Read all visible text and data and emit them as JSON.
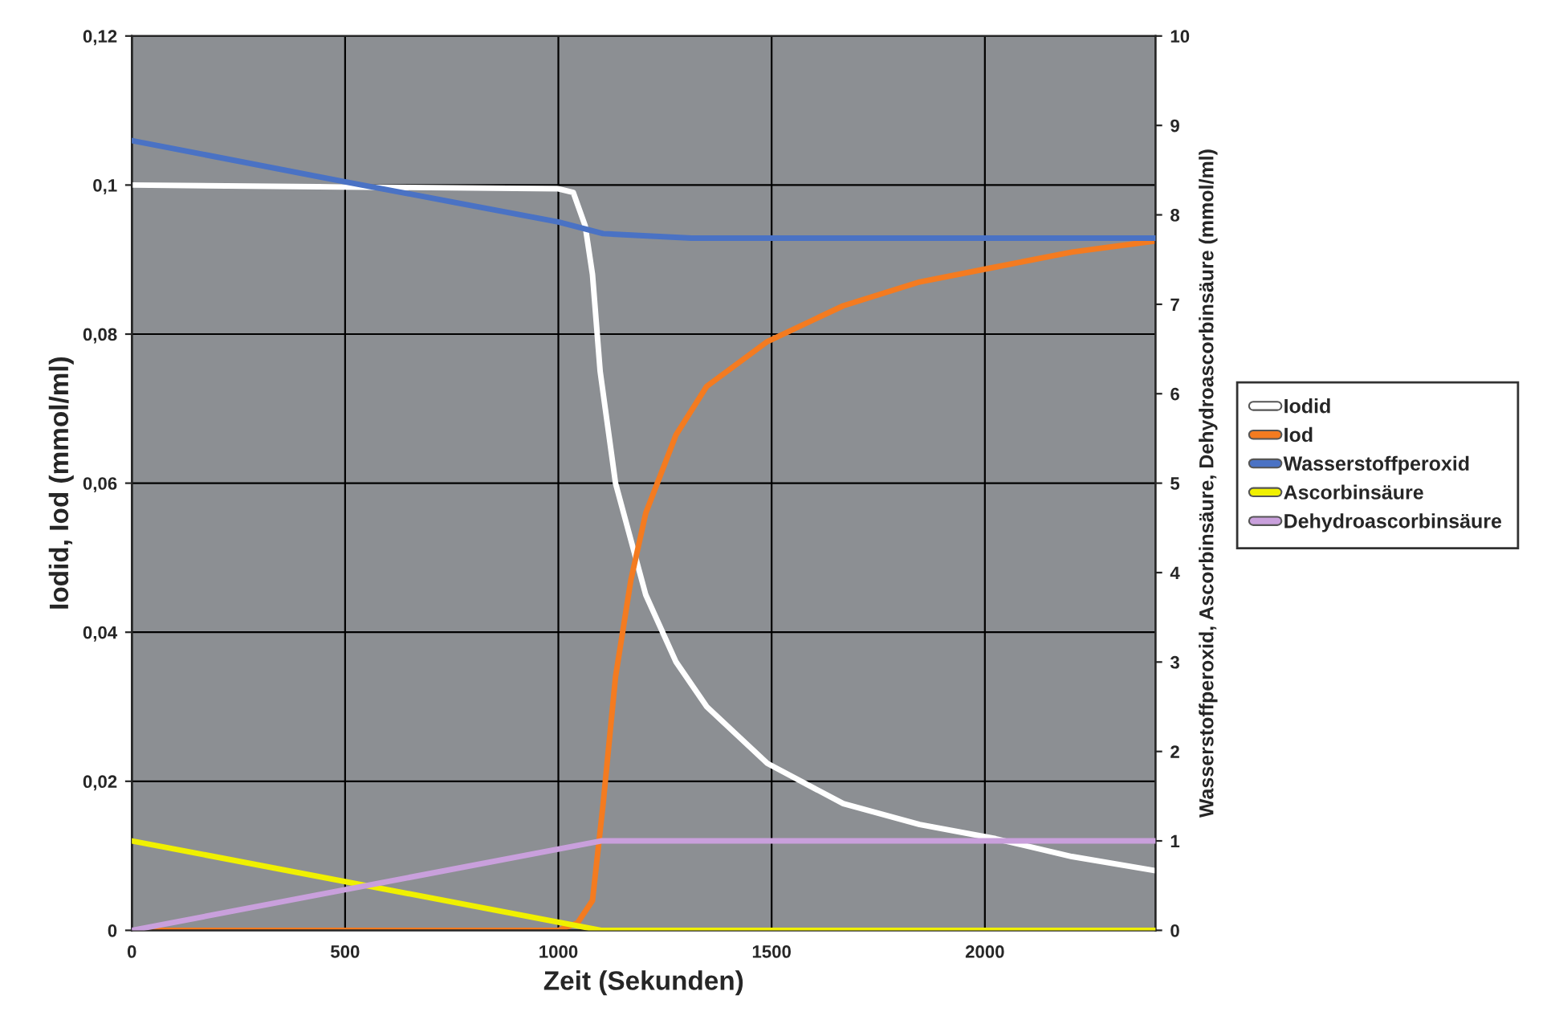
{
  "chart_data": {
    "type": "line",
    "xlabel": "Zeit (Sekunden)",
    "ylabel": "Iodid, Iod (mmol/ml)",
    "y2label": "Wasserstoffperoxid, Ascorbinsäure, Dehydroascorbinsäure (mmol/ml)",
    "xlim": [
      0,
      2400
    ],
    "xticks": [
      0,
      500,
      1000,
      1500,
      2000
    ],
    "ylim": [
      0,
      0.12
    ],
    "yticks": [
      {
        "value": 0,
        "label": "0"
      },
      {
        "value": 0.02,
        "label": "0,02"
      },
      {
        "value": 0.04,
        "label": "0,04"
      },
      {
        "value": 0.06,
        "label": "0,06"
      },
      {
        "value": 0.08,
        "label": "0,08"
      },
      {
        "value": 0.1,
        "label": "0,1"
      },
      {
        "value": 0.12,
        "label": "0,12"
      }
    ],
    "y2lim": [
      0,
      10
    ],
    "y2ticks": [
      0,
      1,
      2,
      3,
      4,
      5,
      6,
      7,
      8,
      9,
      10
    ],
    "grid": true,
    "legend": "right",
    "marker": "none",
    "line_style": "solid",
    "series": [
      {
        "name": "Iodid",
        "color": "#ffffff",
        "x": [
          0,
          1000,
          1035,
          1063,
          1080,
          1098,
          1134,
          1205,
          1276,
          1348,
          1490,
          1668,
          1847,
          2025,
          2204,
          2400
        ],
        "values": [
          0.1,
          0.0995,
          0.099,
          0.0945,
          0.088,
          0.075,
          0.06,
          0.045,
          0.036,
          0.03,
          0.0224,
          0.017,
          0.0142,
          0.0123,
          0.0099,
          0.008
        ]
      },
      {
        "name": "Iod",
        "color": "#f47b20",
        "x": [
          0,
          1000,
          1045,
          1080,
          1105,
          1134,
          1170,
          1205,
          1276,
          1348,
          1490,
          1668,
          1847,
          2025,
          2204,
          2400
        ],
        "values": [
          0,
          0,
          0.001,
          0.004,
          0.017,
          0.034,
          0.047,
          0.056,
          0.0665,
          0.073,
          0.079,
          0.0838,
          0.087,
          0.089,
          0.091,
          0.0925
        ]
      },
      {
        "name": "Wasserstoffperoxid",
        "color": "#4a72c4",
        "axis": "y2",
        "x": [
          0,
          500,
          1000,
          1105,
          1312,
          2400
        ],
        "values": [
          8.83,
          8.37,
          7.92,
          7.79,
          7.74,
          7.74
        ]
      },
      {
        "name": "Ascorbinsäure",
        "color": "#f0f000",
        "axis": "y2",
        "x": [
          0,
          1100,
          2400
        ],
        "values": [
          1.0,
          0,
          0
        ]
      },
      {
        "name": "Dehydroascorbinsäure",
        "color": "#c9a0dc",
        "axis": "y2",
        "x": [
          0,
          1100,
          2400
        ],
        "values": [
          0,
          1.0,
          1.0
        ]
      }
    ]
  }
}
